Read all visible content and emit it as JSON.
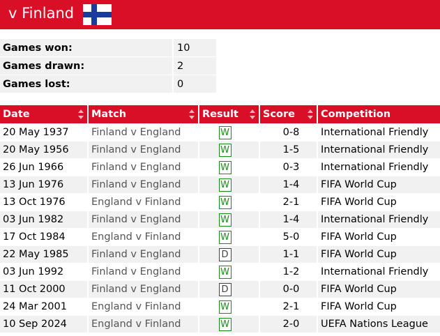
{
  "header": {
    "title": "v Finland",
    "flag_icon": "finland-flag-icon",
    "flag_colors": {
      "field": "#ffffff",
      "cross": "#1a3c9c"
    }
  },
  "summary": [
    {
      "label": "Games won:",
      "value": "10"
    },
    {
      "label": "Games drawn:",
      "value": "2"
    },
    {
      "label": "Games lost:",
      "value": "0"
    }
  ],
  "table": {
    "columns": [
      "Date",
      "Match",
      "Result",
      "Score",
      "Competition"
    ],
    "rows": [
      {
        "date": "20 May 1937",
        "match": "Finland v England",
        "result": "W",
        "score": "0-8",
        "competition": "International Friendly"
      },
      {
        "date": "20 May 1956",
        "match": "Finland v England",
        "result": "W",
        "score": "1-5",
        "competition": "International Friendly"
      },
      {
        "date": "26 Jun 1966",
        "match": "Finland v England",
        "result": "W",
        "score": "0-3",
        "competition": "International Friendly"
      },
      {
        "date": "13 Jun 1976",
        "match": "Finland v England",
        "result": "W",
        "score": "1-4",
        "competition": "FIFA World Cup"
      },
      {
        "date": "13 Oct 1976",
        "match": "England v Finland",
        "result": "W",
        "score": "2-1",
        "competition": "FIFA World Cup"
      },
      {
        "date": "03 Jun 1982",
        "match": "Finland v England",
        "result": "W",
        "score": "1-4",
        "competition": "International Friendly"
      },
      {
        "date": "17 Oct 1984",
        "match": "England v Finland",
        "result": "W",
        "score": "5-0",
        "competition": "FIFA World Cup"
      },
      {
        "date": "22 May 1985",
        "match": "Finland v England",
        "result": "D",
        "score": "1-1",
        "competition": "FIFA World Cup"
      },
      {
        "date": "03 Jun 1992",
        "match": "Finland v England",
        "result": "W",
        "score": "1-2",
        "competition": "International Friendly"
      },
      {
        "date": "11 Oct 2000",
        "match": "Finland v England",
        "result": "D",
        "score": "0-0",
        "competition": "FIFA World Cup"
      },
      {
        "date": "24 Mar 2001",
        "match": "England v Finland",
        "result": "W",
        "score": "2-1",
        "competition": "FIFA World Cup"
      },
      {
        "date": "10 Sep 2024",
        "match": "England v Finland",
        "result": "W",
        "score": "2-0",
        "competition": "UEFA Nations League"
      }
    ]
  },
  "colors": {
    "accent": "#d80f26",
    "row_alt": "#f1f1f1",
    "win": "#1a8c1a",
    "draw": "#444444"
  }
}
